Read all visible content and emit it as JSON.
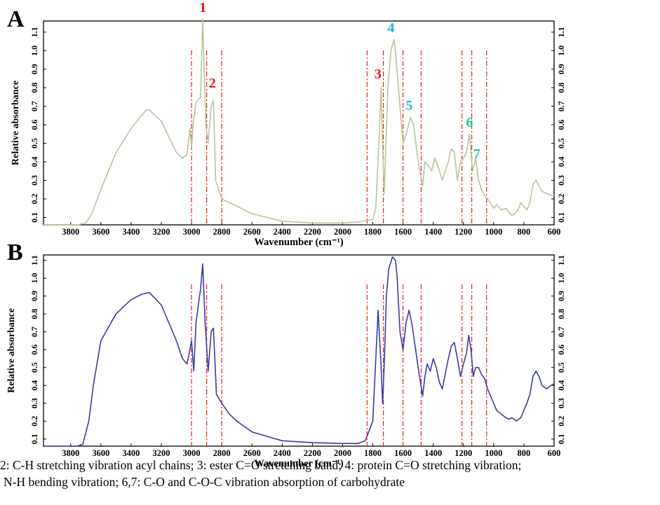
{
  "caption": {
    "line1": "2: C-H stretching vibration acyl chains; 3: ester C=O stretching band; 4: protein C=O stretching vibration;",
    "line2": "N-H bending vibration; 6,7: C-O and C-O-C vibration absorption of carbohydrate"
  },
  "chart_data": [
    {
      "type": "line",
      "panel_label": "A",
      "xlabel": "Wavenumber (cm⁻¹)",
      "ylabel": "Relative absorbance",
      "xlim": [
        3980,
        600
      ],
      "ylim": [
        0.06,
        1.16
      ],
      "x_ticks": [
        3800,
        3600,
        3400,
        3200,
        3000,
        2800,
        2600,
        2400,
        2200,
        2000,
        1800,
        1600,
        1400,
        1200,
        1000,
        800,
        600
      ],
      "y_ticks": [
        0.1,
        0.2,
        0.3,
        0.4,
        0.5,
        0.6,
        0.7,
        0.8,
        0.9,
        1.0,
        1.1
      ],
      "color": "#b8c39a",
      "series": [
        {
          "x": [
            3980,
            3750,
            3700,
            3660,
            3600,
            3500,
            3400,
            3300,
            3280,
            3200,
            3100,
            3060,
            3030,
            3010,
            3000,
            2990,
            2970,
            2940,
            2926,
            2905,
            2890,
            2870,
            2855,
            2840,
            2800,
            2700,
            2600,
            2400,
            2200,
            2000,
            1900,
            1800,
            1780,
            1760,
            1745,
            1735,
            1725,
            1715,
            1700,
            1680,
            1660,
            1650,
            1620,
            1600,
            1580,
            1550,
            1530,
            1500,
            1470,
            1455,
            1430,
            1410,
            1390,
            1370,
            1340,
            1300,
            1280,
            1260,
            1240,
            1220,
            1200,
            1180,
            1160,
            1155,
            1140,
            1120,
            1100,
            1080,
            1060,
            1040,
            1000,
            980,
            950,
            920,
            900,
            880,
            860,
            840,
            820,
            800,
            780,
            760,
            740,
            720,
            700,
            680,
            650,
            620,
            600
          ],
          "y": [
            0.06,
            0.06,
            0.07,
            0.12,
            0.25,
            0.45,
            0.58,
            0.68,
            0.68,
            0.62,
            0.45,
            0.42,
            0.44,
            0.58,
            0.48,
            0.6,
            0.72,
            0.75,
            1.17,
            0.6,
            0.5,
            0.7,
            0.73,
            0.3,
            0.2,
            0.16,
            0.12,
            0.08,
            0.07,
            0.07,
            0.075,
            0.09,
            0.15,
            0.5,
            0.8,
            0.5,
            0.23,
            0.45,
            0.8,
            1.0,
            1.06,
            1.0,
            0.7,
            0.5,
            0.55,
            0.64,
            0.6,
            0.4,
            0.27,
            0.4,
            0.38,
            0.35,
            0.42,
            0.38,
            0.3,
            0.4,
            0.47,
            0.45,
            0.3,
            0.4,
            0.42,
            0.45,
            0.55,
            0.5,
            0.35,
            0.42,
            0.3,
            0.25,
            0.22,
            0.2,
            0.15,
            0.17,
            0.14,
            0.15,
            0.13,
            0.11,
            0.12,
            0.14,
            0.18,
            0.16,
            0.14,
            0.18,
            0.28,
            0.3,
            0.27,
            0.24,
            0.23,
            0.22,
            0.22
          ]
        }
      ],
      "vlines": [
        3000,
        2900,
        2800,
        1838,
        1730,
        1600,
        1480,
        1210,
        1145,
        1047
      ],
      "vline_color": "#e02020",
      "annotations": [
        {
          "text": "1",
          "x": 2925,
          "y": 1.21,
          "color": "#e8151a"
        },
        {
          "text": "2",
          "x": 2862,
          "y": 0.8,
          "color": "#e8151a"
        },
        {
          "text": "3",
          "x": 1766,
          "y": 0.85,
          "color": "#e8151a"
        },
        {
          "text": "4",
          "x": 1680,
          "y": 1.1,
          "color": "#1fb3e4"
        },
        {
          "text": "5",
          "x": 1560,
          "y": 0.68,
          "color": "#1fb3e4"
        },
        {
          "text": "6",
          "x": 1160,
          "y": 0.59,
          "color": "#21c9a0"
        },
        {
          "text": "7",
          "x": 1112,
          "y": 0.42,
          "color": "#21c9a0"
        }
      ]
    },
    {
      "type": "line",
      "panel_label": "B",
      "xlabel": "Wavenumber (cm⁻¹)",
      "ylabel": "Relative absorbance",
      "xlim": [
        3980,
        600
      ],
      "ylim": [
        0.06,
        1.13
      ],
      "x_ticks": [
        3800,
        3600,
        3400,
        3200,
        3000,
        2800,
        2600,
        2400,
        2200,
        2000,
        1800,
        1600,
        1400,
        1200,
        1000,
        800,
        600
      ],
      "y_ticks": [
        0.1,
        0.2,
        0.3,
        0.4,
        0.5,
        0.6,
        0.7,
        0.8,
        0.9,
        1.0,
        1.1
      ],
      "color": "#3a3aa8",
      "series": [
        {
          "x": [
            3980,
            3760,
            3720,
            3680,
            3650,
            3600,
            3500,
            3400,
            3330,
            3280,
            3200,
            3150,
            3100,
            3060,
            3030,
            3015,
            3000,
            2985,
            2970,
            2950,
            2940,
            2926,
            2910,
            2890,
            2870,
            2855,
            2835,
            2800,
            2750,
            2700,
            2600,
            2400,
            2200,
            2000,
            1900,
            1850,
            1800,
            1780,
            1765,
            1745,
            1735,
            1725,
            1710,
            1695,
            1670,
            1650,
            1640,
            1620,
            1600,
            1580,
            1560,
            1540,
            1500,
            1470,
            1455,
            1440,
            1420,
            1400,
            1380,
            1360,
            1340,
            1300,
            1280,
            1260,
            1240,
            1220,
            1200,
            1180,
            1165,
            1150,
            1135,
            1120,
            1100,
            1080,
            1060,
            1040,
            1000,
            980,
            950,
            920,
            900,
            880,
            850,
            820,
            800,
            780,
            760,
            740,
            720,
            700,
            680,
            650,
            620,
            600
          ],
          "y": [
            0.06,
            0.06,
            0.07,
            0.2,
            0.4,
            0.65,
            0.8,
            0.88,
            0.91,
            0.92,
            0.85,
            0.75,
            0.65,
            0.55,
            0.52,
            0.58,
            0.65,
            0.48,
            0.75,
            0.88,
            0.94,
            1.08,
            0.75,
            0.48,
            0.7,
            0.72,
            0.35,
            0.3,
            0.24,
            0.2,
            0.14,
            0.09,
            0.08,
            0.075,
            0.075,
            0.09,
            0.2,
            0.55,
            0.82,
            0.5,
            0.3,
            0.5,
            0.9,
            1.05,
            1.12,
            1.1,
            1.02,
            0.7,
            0.6,
            0.75,
            0.82,
            0.74,
            0.5,
            0.34,
            0.45,
            0.52,
            0.48,
            0.55,
            0.5,
            0.42,
            0.38,
            0.55,
            0.62,
            0.64,
            0.55,
            0.45,
            0.52,
            0.58,
            0.68,
            0.6,
            0.45,
            0.5,
            0.5,
            0.46,
            0.44,
            0.38,
            0.3,
            0.26,
            0.24,
            0.22,
            0.21,
            0.22,
            0.2,
            0.22,
            0.26,
            0.3,
            0.35,
            0.45,
            0.48,
            0.45,
            0.4,
            0.38,
            0.4,
            0.41
          ]
        }
      ],
      "vlines": [
        3000,
        2900,
        2800,
        1838,
        1730,
        1600,
        1480,
        1210,
        1145,
        1047
      ],
      "vline_color": "#e02020",
      "annotations": []
    }
  ]
}
